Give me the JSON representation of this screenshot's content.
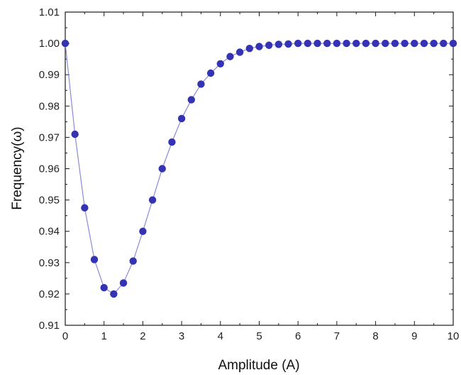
{
  "chart_data": {
    "type": "scatter",
    "xlabel": "Amplitude (A)",
    "ylabel": "Frequency(ω)",
    "xlim": [
      0,
      10
    ],
    "ylim": [
      0.91,
      1.01
    ],
    "x_ticks": [
      0,
      1,
      2,
      3,
      4,
      5,
      6,
      7,
      8,
      9,
      10
    ],
    "x_tick_labels": [
      "0",
      "1",
      "2",
      "3",
      "4",
      "5",
      "6",
      "7",
      "8",
      "9",
      "10"
    ],
    "y_ticks": [
      0.91,
      0.92,
      0.93,
      0.94,
      0.95,
      0.96,
      0.97,
      0.98,
      0.99,
      1.0,
      1.01
    ],
    "y_tick_labels": [
      "0.91",
      "0.92",
      "0.93",
      "0.94",
      "0.95",
      "0.96",
      "0.97",
      "0.98",
      "0.99",
      "1.00",
      "1.01"
    ],
    "grid": false,
    "marker_color": "#3333b3",
    "line_color": "#8a8ad8",
    "series": [
      {
        "x": [
          0,
          0.25,
          0.5,
          0.75,
          1.0,
          1.25,
          1.5,
          1.75,
          2.0,
          2.25,
          2.5,
          2.75,
          3.0,
          3.25,
          3.5,
          3.75,
          4.0,
          4.25,
          4.5,
          4.75,
          5.0,
          5.25,
          5.5,
          5.75,
          6.0,
          6.25,
          6.5,
          6.75,
          7.0,
          7.25,
          7.5,
          7.75,
          8.0,
          8.25,
          8.5,
          8.75,
          9.0,
          9.25,
          9.5,
          9.75,
          10.0
        ],
        "y": [
          1.0,
          0.971,
          0.9475,
          0.931,
          0.922,
          0.92,
          0.9235,
          0.9305,
          0.94,
          0.95,
          0.96,
          0.9685,
          0.976,
          0.982,
          0.987,
          0.9905,
          0.9935,
          0.9958,
          0.9972,
          0.9984,
          0.999,
          0.9994,
          0.9997,
          0.9998,
          1.0,
          1.0,
          1.0,
          1.0,
          1.0,
          1.0,
          1.0,
          1.0,
          1.0,
          1.0,
          1.0,
          1.0,
          1.0,
          1.0,
          1.0,
          1.0,
          1.0
        ]
      }
    ]
  }
}
